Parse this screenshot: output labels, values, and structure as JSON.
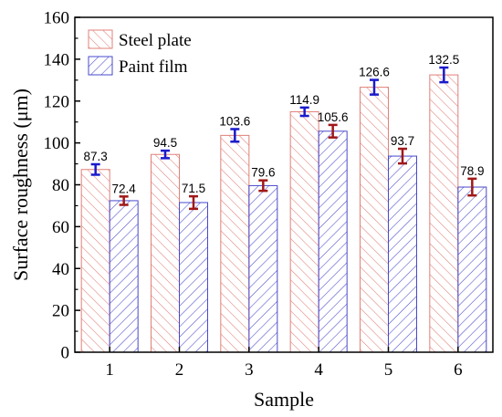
{
  "chart_data": {
    "type": "bar",
    "xlabel": "Sample",
    "ylabel": "Surface roughness (μm)",
    "categories": [
      "1",
      "2",
      "3",
      "4",
      "5",
      "6"
    ],
    "ylim": [
      0,
      160
    ],
    "yticks": [
      "0",
      "20",
      "40",
      "60",
      "80",
      "100",
      "120",
      "140",
      "160"
    ],
    "grid": false,
    "legend_position": "top-left",
    "series": [
      {
        "name": "Steel plate",
        "values": [
          87.3,
          94.5,
          103.6,
          114.9,
          126.6,
          132.5
        ],
        "labels": [
          "87.3",
          "94.5",
          "103.6",
          "114.9",
          "126.6",
          "132.5"
        ],
        "errors": [
          2.5,
          1.8,
          3.0,
          2.0,
          3.5,
          3.5
        ],
        "hatch": "diagonal-forward",
        "hatch_color": "#e08078",
        "error_color": "#1a1acc"
      },
      {
        "name": "Paint film",
        "values": [
          72.4,
          71.5,
          79.6,
          105.6,
          93.7,
          78.9
        ],
        "labels": [
          "72.4",
          "71.5",
          "79.6",
          "105.6",
          "93.7",
          "78.9"
        ],
        "errors": [
          2.0,
          3.0,
          2.5,
          3.0,
          3.5,
          4.0
        ],
        "hatch": "diagonal-backward",
        "hatch_color": "#4848cc",
        "error_color": "#a01818"
      }
    ]
  }
}
